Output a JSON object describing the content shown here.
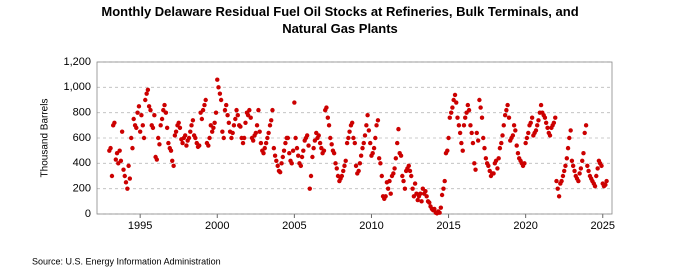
{
  "chart_data": {
    "type": "scatter",
    "title": "Monthly Delaware Residual Fuel Oil Stocks at Refineries, Bulk Terminals, and Natural Gas Plants",
    "ylabel": "Thousand Barrels",
    "source": "Source: U.S. Energy Information Administration",
    "xlim": [
      1992.2,
      2025.6
    ],
    "xticks": [
      1995,
      2000,
      2005,
      2010,
      2015,
      2020,
      2025
    ],
    "ylim": [
      0,
      1200
    ],
    "yticks": [
      0,
      200,
      400,
      600,
      800,
      {
        "value": 1000,
        "label": "1,000"
      },
      {
        "value": 1200,
        "label": "1,200"
      }
    ],
    "grid": true,
    "series": [
      {
        "color": "#cc0000",
        "x": [
          1993,
          1993.08,
          1993.17,
          1993.25,
          1993.33,
          1993.42,
          1993.5,
          1993.58,
          1993.67,
          1993.75,
          1993.83,
          1993.92,
          1994,
          1994.08,
          1994.17,
          1994.25,
          1994.33,
          1994.42,
          1994.5,
          1994.58,
          1994.67,
          1994.75,
          1994.83,
          1994.92,
          1995,
          1995.08,
          1995.17,
          1995.25,
          1995.33,
          1995.42,
          1995.5,
          1995.58,
          1995.67,
          1995.75,
          1995.83,
          1995.92,
          1996,
          1996.08,
          1996.17,
          1996.25,
          1996.33,
          1996.42,
          1996.5,
          1996.58,
          1996.67,
          1996.75,
          1996.83,
          1996.92,
          1997,
          1997.08,
          1997.17,
          1997.25,
          1997.33,
          1997.42,
          1997.5,
          1997.58,
          1997.67,
          1997.75,
          1997.83,
          1997.92,
          1998,
          1998.08,
          1998.17,
          1998.25,
          1998.33,
          1998.42,
          1998.5,
          1998.58,
          1998.67,
          1998.75,
          1998.83,
          1998.92,
          1999,
          1999.08,
          1999.17,
          1999.25,
          1999.33,
          1999.42,
          1999.5,
          1999.58,
          1999.67,
          1999.75,
          1999.83,
          1999.92,
          2000,
          2000.08,
          2000.17,
          2000.25,
          2000.33,
          2000.42,
          2000.5,
          2000.58,
          2000.67,
          2000.75,
          2000.83,
          2000.92,
          2001,
          2001.08,
          2001.17,
          2001.25,
          2001.33,
          2001.42,
          2001.5,
          2001.58,
          2001.67,
          2001.75,
          2001.83,
          2001.92,
          2002,
          2002.08,
          2002.17,
          2002.25,
          2002.33,
          2002.42,
          2002.5,
          2002.58,
          2002.67,
          2002.75,
          2002.83,
          2002.92,
          2003,
          2003.08,
          2003.17,
          2003.25,
          2003.33,
          2003.42,
          2003.5,
          2003.58,
          2003.67,
          2003.75,
          2003.83,
          2003.92,
          2004,
          2004.08,
          2004.17,
          2004.25,
          2004.33,
          2004.42,
          2004.5,
          2004.58,
          2004.67,
          2004.75,
          2004.83,
          2004.92,
          2005,
          2005.08,
          2005.17,
          2005.25,
          2005.33,
          2005.42,
          2005.5,
          2005.58,
          2005.67,
          2005.75,
          2005.83,
          2005.92,
          2006,
          2006.08,
          2006.17,
          2006.25,
          2006.33,
          2006.42,
          2006.5,
          2006.58,
          2006.67,
          2006.75,
          2006.83,
          2006.92,
          2007,
          2007.08,
          2007.17,
          2007.25,
          2007.33,
          2007.42,
          2007.5,
          2007.58,
          2007.67,
          2007.75,
          2007.83,
          2007.92,
          2008,
          2008.08,
          2008.17,
          2008.25,
          2008.33,
          2008.42,
          2008.5,
          2008.58,
          2008.67,
          2008.75,
          2008.83,
          2008.92,
          2009,
          2009.08,
          2009.17,
          2009.25,
          2009.33,
          2009.42,
          2009.5,
          2009.58,
          2009.67,
          2009.75,
          2009.83,
          2009.92,
          2010,
          2010.08,
          2010.17,
          2010.25,
          2010.33,
          2010.42,
          2010.5,
          2010.58,
          2010.67,
          2010.75,
          2010.83,
          2010.92,
          2011,
          2011.08,
          2011.17,
          2011.25,
          2011.33,
          2011.42,
          2011.5,
          2011.58,
          2011.67,
          2011.75,
          2011.83,
          2011.92,
          2012,
          2012.08,
          2012.17,
          2012.25,
          2012.33,
          2012.42,
          2012.5,
          2012.58,
          2012.67,
          2012.75,
          2012.83,
          2012.92,
          2013,
          2013.08,
          2013.17,
          2013.25,
          2013.33,
          2013.42,
          2013.5,
          2013.58,
          2013.67,
          2013.75,
          2013.83,
          2013.92,
          2014,
          2014.08,
          2014.17,
          2014.25,
          2014.33,
          2014.42,
          2014.5,
          2014.58,
          2014.67,
          2014.75,
          2014.83,
          2014.92,
          2015,
          2015.08,
          2015.17,
          2015.25,
          2015.33,
          2015.42,
          2015.5,
          2015.58,
          2015.67,
          2015.75,
          2015.83,
          2015.92,
          2016,
          2016.08,
          2016.17,
          2016.25,
          2016.33,
          2016.42,
          2016.5,
          2016.58,
          2016.67,
          2016.75,
          2016.83,
          2016.92,
          2017,
          2017.08,
          2017.17,
          2017.25,
          2017.33,
          2017.42,
          2017.5,
          2017.58,
          2017.67,
          2017.75,
          2017.83,
          2017.92,
          2018,
          2018.08,
          2018.17,
          2018.25,
          2018.33,
          2018.42,
          2018.5,
          2018.58,
          2018.67,
          2018.75,
          2018.83,
          2018.92,
          2019,
          2019.08,
          2019.17,
          2019.25,
          2019.33,
          2019.42,
          2019.5,
          2019.58,
          2019.67,
          2019.75,
          2019.83,
          2019.92,
          2020,
          2020.08,
          2020.17,
          2020.25,
          2020.33,
          2020.42,
          2020.5,
          2020.58,
          2020.67,
          2020.75,
          2020.83,
          2020.92,
          2021,
          2021.08,
          2021.17,
          2021.25,
          2021.33,
          2021.42,
          2021.5,
          2021.58,
          2021.67,
          2021.75,
          2021.83,
          2021.92,
          2022,
          2022.08,
          2022.17,
          2022.25,
          2022.33,
          2022.42,
          2022.5,
          2022.58,
          2022.67,
          2022.75,
          2022.83,
          2022.92,
          2023,
          2023.08,
          2023.17,
          2023.25,
          2023.33,
          2023.42,
          2023.5,
          2023.58,
          2023.67,
          2023.75,
          2023.83,
          2023.92,
          2024,
          2024.08,
          2024.17,
          2024.25,
          2024.33,
          2024.42,
          2024.5,
          2024.58,
          2024.67,
          2024.75,
          2024.83,
          2024.92,
          2025,
          2025.08,
          2025.17,
          2025.25
        ],
        "values": [
          500,
          520,
          300,
          700,
          720,
          430,
          480,
          400,
          500,
          420,
          650,
          350,
          300,
          250,
          200,
          380,
          280,
          600,
          520,
          750,
          700,
          680,
          800,
          850,
          650,
          780,
          700,
          600,
          900,
          950,
          980,
          850,
          820,
          700,
          680,
          780,
          450,
          430,
          600,
          550,
          700,
          750,
          820,
          860,
          800,
          680,
          560,
          520,
          500,
          420,
          380,
          620,
          650,
          700,
          720,
          680,
          590,
          560,
          600,
          620,
          540,
          580,
          600,
          650,
          700,
          740,
          620,
          600,
          560,
          530,
          540,
          800,
          750,
          820,
          860,
          900,
          560,
          540,
          600,
          700,
          650,
          680,
          720,
          800,
          1060,
          1000,
          950,
          900,
          650,
          600,
          820,
          860,
          780,
          720,
          650,
          600,
          640,
          700,
          750,
          820,
          780,
          700,
          690,
          600,
          560,
          600,
          720,
          800,
          780,
          820,
          760,
          600,
          580,
          620,
          640,
          700,
          820,
          650,
          560,
          500,
          480,
          520,
          560,
          600,
          640,
          700,
          740,
          820,
          520,
          460,
          420,
          380,
          340,
          330,
          400,
          450,
          500,
          560,
          600,
          600,
          480,
          420,
          400,
          500,
          880,
          600,
          520,
          460,
          400,
          380,
          450,
          500,
          580,
          600,
          620,
          540,
          200,
          300,
          450,
          520,
          580,
          640,
          600,
          620,
          560,
          520,
          480,
          500,
          820,
          840,
          760,
          700,
          600,
          550,
          500,
          480,
          400,
          360,
          300,
          260,
          280,
          300,
          340,
          380,
          420,
          560,
          600,
          650,
          700,
          720,
          600,
          560,
          380,
          320,
          340,
          400,
          460,
          520,
          560,
          620,
          700,
          780,
          660,
          560,
          460,
          480,
          520,
          600,
          700,
          740,
          440,
          400,
          300,
          140,
          120,
          140,
          250,
          200,
          260,
          160,
          300,
          320,
          360,
          440,
          560,
          670,
          480,
          460,
          300,
          260,
          200,
          340,
          360,
          380,
          340,
          300,
          200,
          140,
          240,
          160,
          110,
          140,
          160,
          100,
          200,
          160,
          180,
          140,
          100,
          90,
          60,
          40,
          30,
          40,
          10,
          5,
          20,
          10,
          50,
          150,
          200,
          260,
          480,
          500,
          600,
          760,
          800,
          840,
          900,
          940,
          880,
          760,
          700,
          640,
          560,
          500,
          700,
          760,
          800,
          860,
          820,
          700,
          640,
          560,
          400,
          350,
          640,
          580,
          900,
          840,
          760,
          600,
          520,
          440,
          400,
          380,
          340,
          300,
          320,
          320,
          400,
          420,
          360,
          440,
          520,
          560,
          620,
          700,
          780,
          820,
          860,
          760,
          580,
          600,
          620,
          700,
          660,
          540,
          480,
          440,
          420,
          400,
          380,
          400,
          560,
          600,
          640,
          700,
          720,
          760,
          620,
          640,
          660,
          700,
          740,
          800,
          860,
          800,
          780,
          760,
          720,
          680,
          640,
          620,
          680,
          700,
          720,
          760,
          260,
          200,
          140,
          240,
          260,
          300,
          340,
          380,
          440,
          520,
          600,
          660,
          420,
          380,
          340,
          300,
          280,
          260,
          320,
          360,
          420,
          480,
          640,
          700,
          380,
          340,
          300,
          280,
          260,
          240,
          220,
          300,
          360,
          420,
          400,
          380,
          240,
          220,
          230,
          260
        ]
      }
    ]
  }
}
